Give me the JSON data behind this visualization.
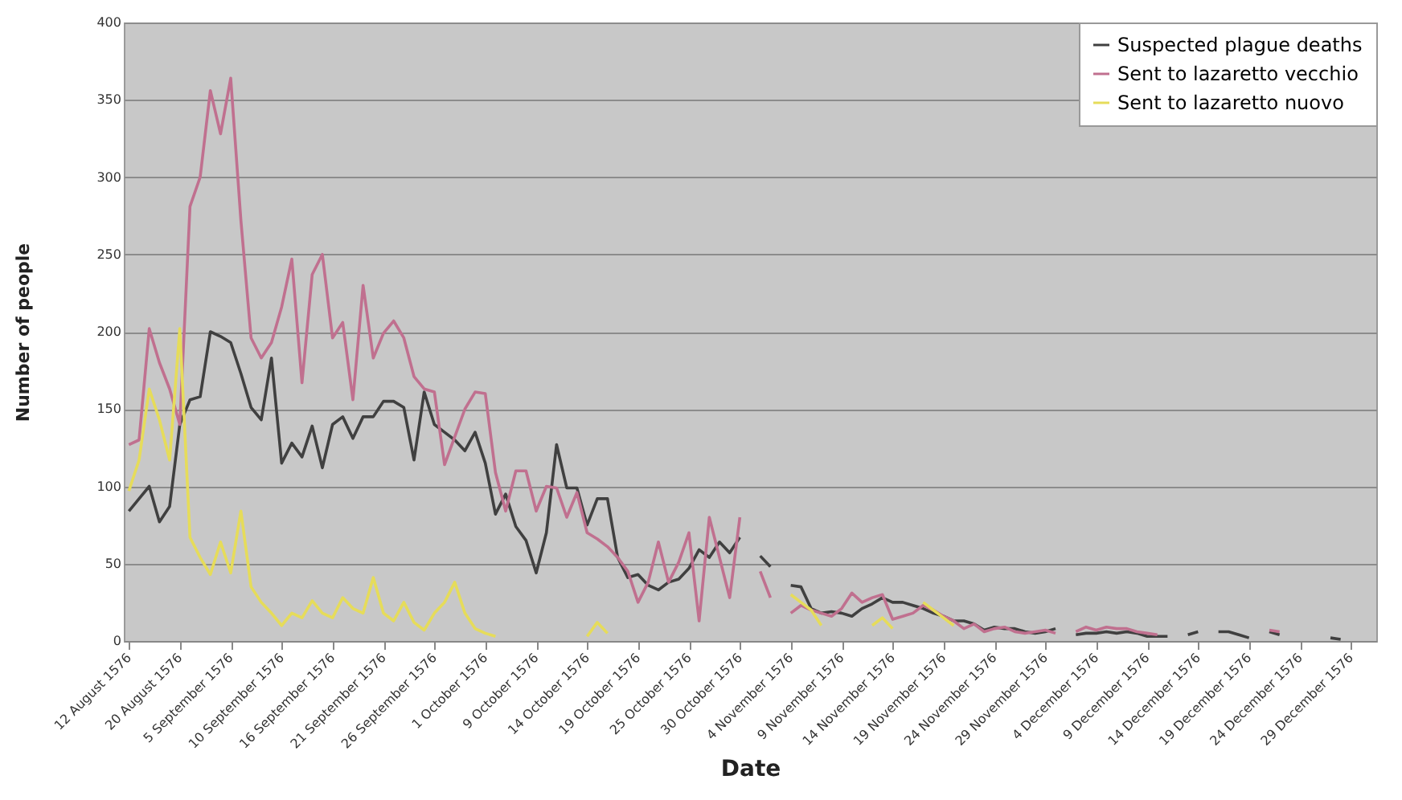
{
  "chart_data": {
    "type": "line",
    "xlabel": "Date",
    "ylabel": "Number of people",
    "categories": [
      "12 August 1576",
      null,
      null,
      null,
      null,
      "20 August 1576",
      null,
      null,
      null,
      null,
      "5 September 1576",
      null,
      null,
      null,
      null,
      "10 September 1576",
      null,
      null,
      null,
      null,
      "16 September 1576",
      null,
      null,
      null,
      null,
      "21 September 1576",
      null,
      null,
      null,
      null,
      "26 September 1576",
      null,
      null,
      null,
      null,
      "1 October 1576",
      null,
      null,
      null,
      null,
      "9 October 1576",
      null,
      null,
      null,
      null,
      "14 October 1576",
      null,
      null,
      null,
      null,
      "19 October 1576",
      null,
      null,
      null,
      null,
      "25 October 1576",
      null,
      null,
      null,
      null,
      "30 October 1576",
      null,
      null,
      null,
      null,
      "4 November 1576",
      null,
      null,
      null,
      null,
      "9 November 1576",
      null,
      null,
      null,
      null,
      "14 November 1576",
      null,
      null,
      null,
      null,
      "19 November 1576",
      null,
      null,
      null,
      null,
      "24 November 1576",
      null,
      null,
      null,
      null,
      "29 November 1576",
      null,
      null,
      null,
      null,
      "4 December 1576",
      null,
      null,
      null,
      null,
      "9 December 1576",
      null,
      null,
      null,
      null,
      "14 December 1576",
      null,
      null,
      null,
      null,
      "19 December 1576",
      null,
      null,
      null,
      null,
      "24 December 1576",
      null,
      null,
      null,
      null,
      "29 December 1576",
      null,
      null
    ],
    "series": [
      {
        "name": "Suspected plague deaths",
        "color": "#404040",
        "values": [
          84,
          92,
          100,
          77,
          87,
          140,
          156,
          158,
          200,
          197,
          193,
          173,
          151,
          143,
          183,
          115,
          128,
          119,
          139,
          112,
          140,
          145,
          131,
          145,
          145,
          155,
          155,
          151,
          117,
          161,
          140,
          135,
          130,
          123,
          135,
          115,
          82,
          95,
          74,
          65,
          44,
          70,
          127,
          99,
          99,
          75,
          92,
          92,
          54,
          41,
          43,
          36,
          33,
          38,
          40,
          47,
          59,
          54,
          64,
          57,
          67,
          null,
          55,
          48,
          null,
          36,
          35,
          21,
          18,
          19,
          18,
          16,
          21,
          24,
          28,
          25,
          25,
          23,
          21,
          18,
          16,
          13,
          13,
          11,
          7,
          9,
          8,
          8,
          6,
          5,
          6,
          8,
          null,
          4,
          5,
          5,
          6,
          5,
          6,
          5,
          3,
          3,
          3,
          null,
          4,
          6,
          null,
          6,
          6,
          4,
          2,
          null,
          6,
          4,
          null,
          null,
          null,
          null,
          2,
          1,
          null,
          null,
          null
        ]
      },
      {
        "name": "Sent to lazaretto vecchio",
        "color": "#c0708f",
        "values": [
          127,
          130,
          202,
          180,
          163,
          140,
          281,
          300,
          356,
          328,
          364,
          272,
          196,
          183,
          193,
          216,
          247,
          167,
          237,
          250,
          196,
          206,
          156,
          230,
          183,
          199,
          207,
          196,
          171,
          163,
          161,
          114,
          132,
          150,
          161,
          160,
          109,
          84,
          110,
          110,
          84,
          100,
          99,
          80,
          96,
          70,
          66,
          61,
          54,
          45,
          25,
          38,
          64,
          38,
          51,
          70,
          13,
          80,
          54,
          28,
          80,
          null,
          45,
          28,
          null,
          18,
          23,
          20,
          18,
          16,
          21,
          31,
          25,
          28,
          30,
          14,
          16,
          18,
          23,
          20,
          16,
          13,
          8,
          11,
          6,
          8,
          9,
          6,
          5,
          6,
          7,
          5,
          null,
          6,
          9,
          7,
          9,
          8,
          8,
          6,
          5,
          4,
          null,
          null,
          null,
          null,
          null,
          null,
          null,
          null,
          null,
          null,
          7,
          6,
          null,
          null,
          null,
          null,
          null,
          null,
          null,
          null,
          null
        ]
      },
      {
        "name": "Sent to lazaretto nuovo",
        "color": "#e6dc5a",
        "values": [
          97,
          117,
          163,
          143,
          117,
          202,
          67,
          54,
          43,
          64,
          44,
          84,
          35,
          25,
          18,
          10,
          18,
          15,
          26,
          18,
          15,
          28,
          21,
          18,
          41,
          18,
          13,
          25,
          12,
          7,
          18,
          25,
          38,
          18,
          8,
          5,
          3,
          null,
          null,
          null,
          null,
          null,
          null,
          null,
          null,
          3,
          12,
          5,
          null,
          null,
          null,
          null,
          null,
          null,
          null,
          null,
          null,
          null,
          null,
          null,
          null,
          null,
          null,
          null,
          null,
          30,
          25,
          20,
          10,
          null,
          null,
          null,
          null,
          10,
          15,
          8,
          null,
          null,
          25,
          20,
          15,
          10,
          null,
          null,
          null,
          null,
          null,
          null,
          null,
          null,
          null,
          null,
          null,
          null,
          null,
          null,
          null,
          null,
          null,
          null,
          null,
          null,
          null,
          null,
          null,
          null,
          null,
          null,
          null,
          null,
          null,
          null,
          null,
          null,
          null,
          null,
          null,
          null,
          null,
          null,
          null,
          null,
          null
        ]
      }
    ],
    "ylim": [
      0,
      400
    ],
    "yticks": [
      0,
      50,
      100,
      150,
      200,
      250,
      300,
      350,
      400
    ],
    "grid": "y",
    "legend": "top right"
  }
}
